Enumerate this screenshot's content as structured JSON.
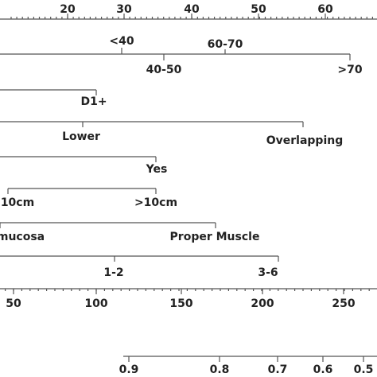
{
  "rows": [
    {
      "labels": [
        "20",
        "30",
        "40",
        "50",
        "60"
      ]
    },
    {
      "labels": [
        "<40",
        "60-70",
        "40-50",
        ">70"
      ]
    },
    {
      "labels": [
        "D1+"
      ]
    },
    {
      "labels": [
        "Lower",
        "Overlapping"
      ]
    },
    {
      "labels": [
        "Yes"
      ]
    },
    {
      "labels": [
        "10cm",
        ">10cm"
      ]
    },
    {
      "labels": [
        "mucosa",
        "Proper Muscle"
      ]
    },
    {
      "labels": [
        "1-2",
        "3-6"
      ]
    },
    {
      "labels": [
        "50",
        "100",
        "150",
        "200",
        "250"
      ]
    },
    {
      "labels": [
        "0.9",
        "0.8",
        "0.7",
        "0.6",
        "0.5"
      ]
    }
  ]
}
